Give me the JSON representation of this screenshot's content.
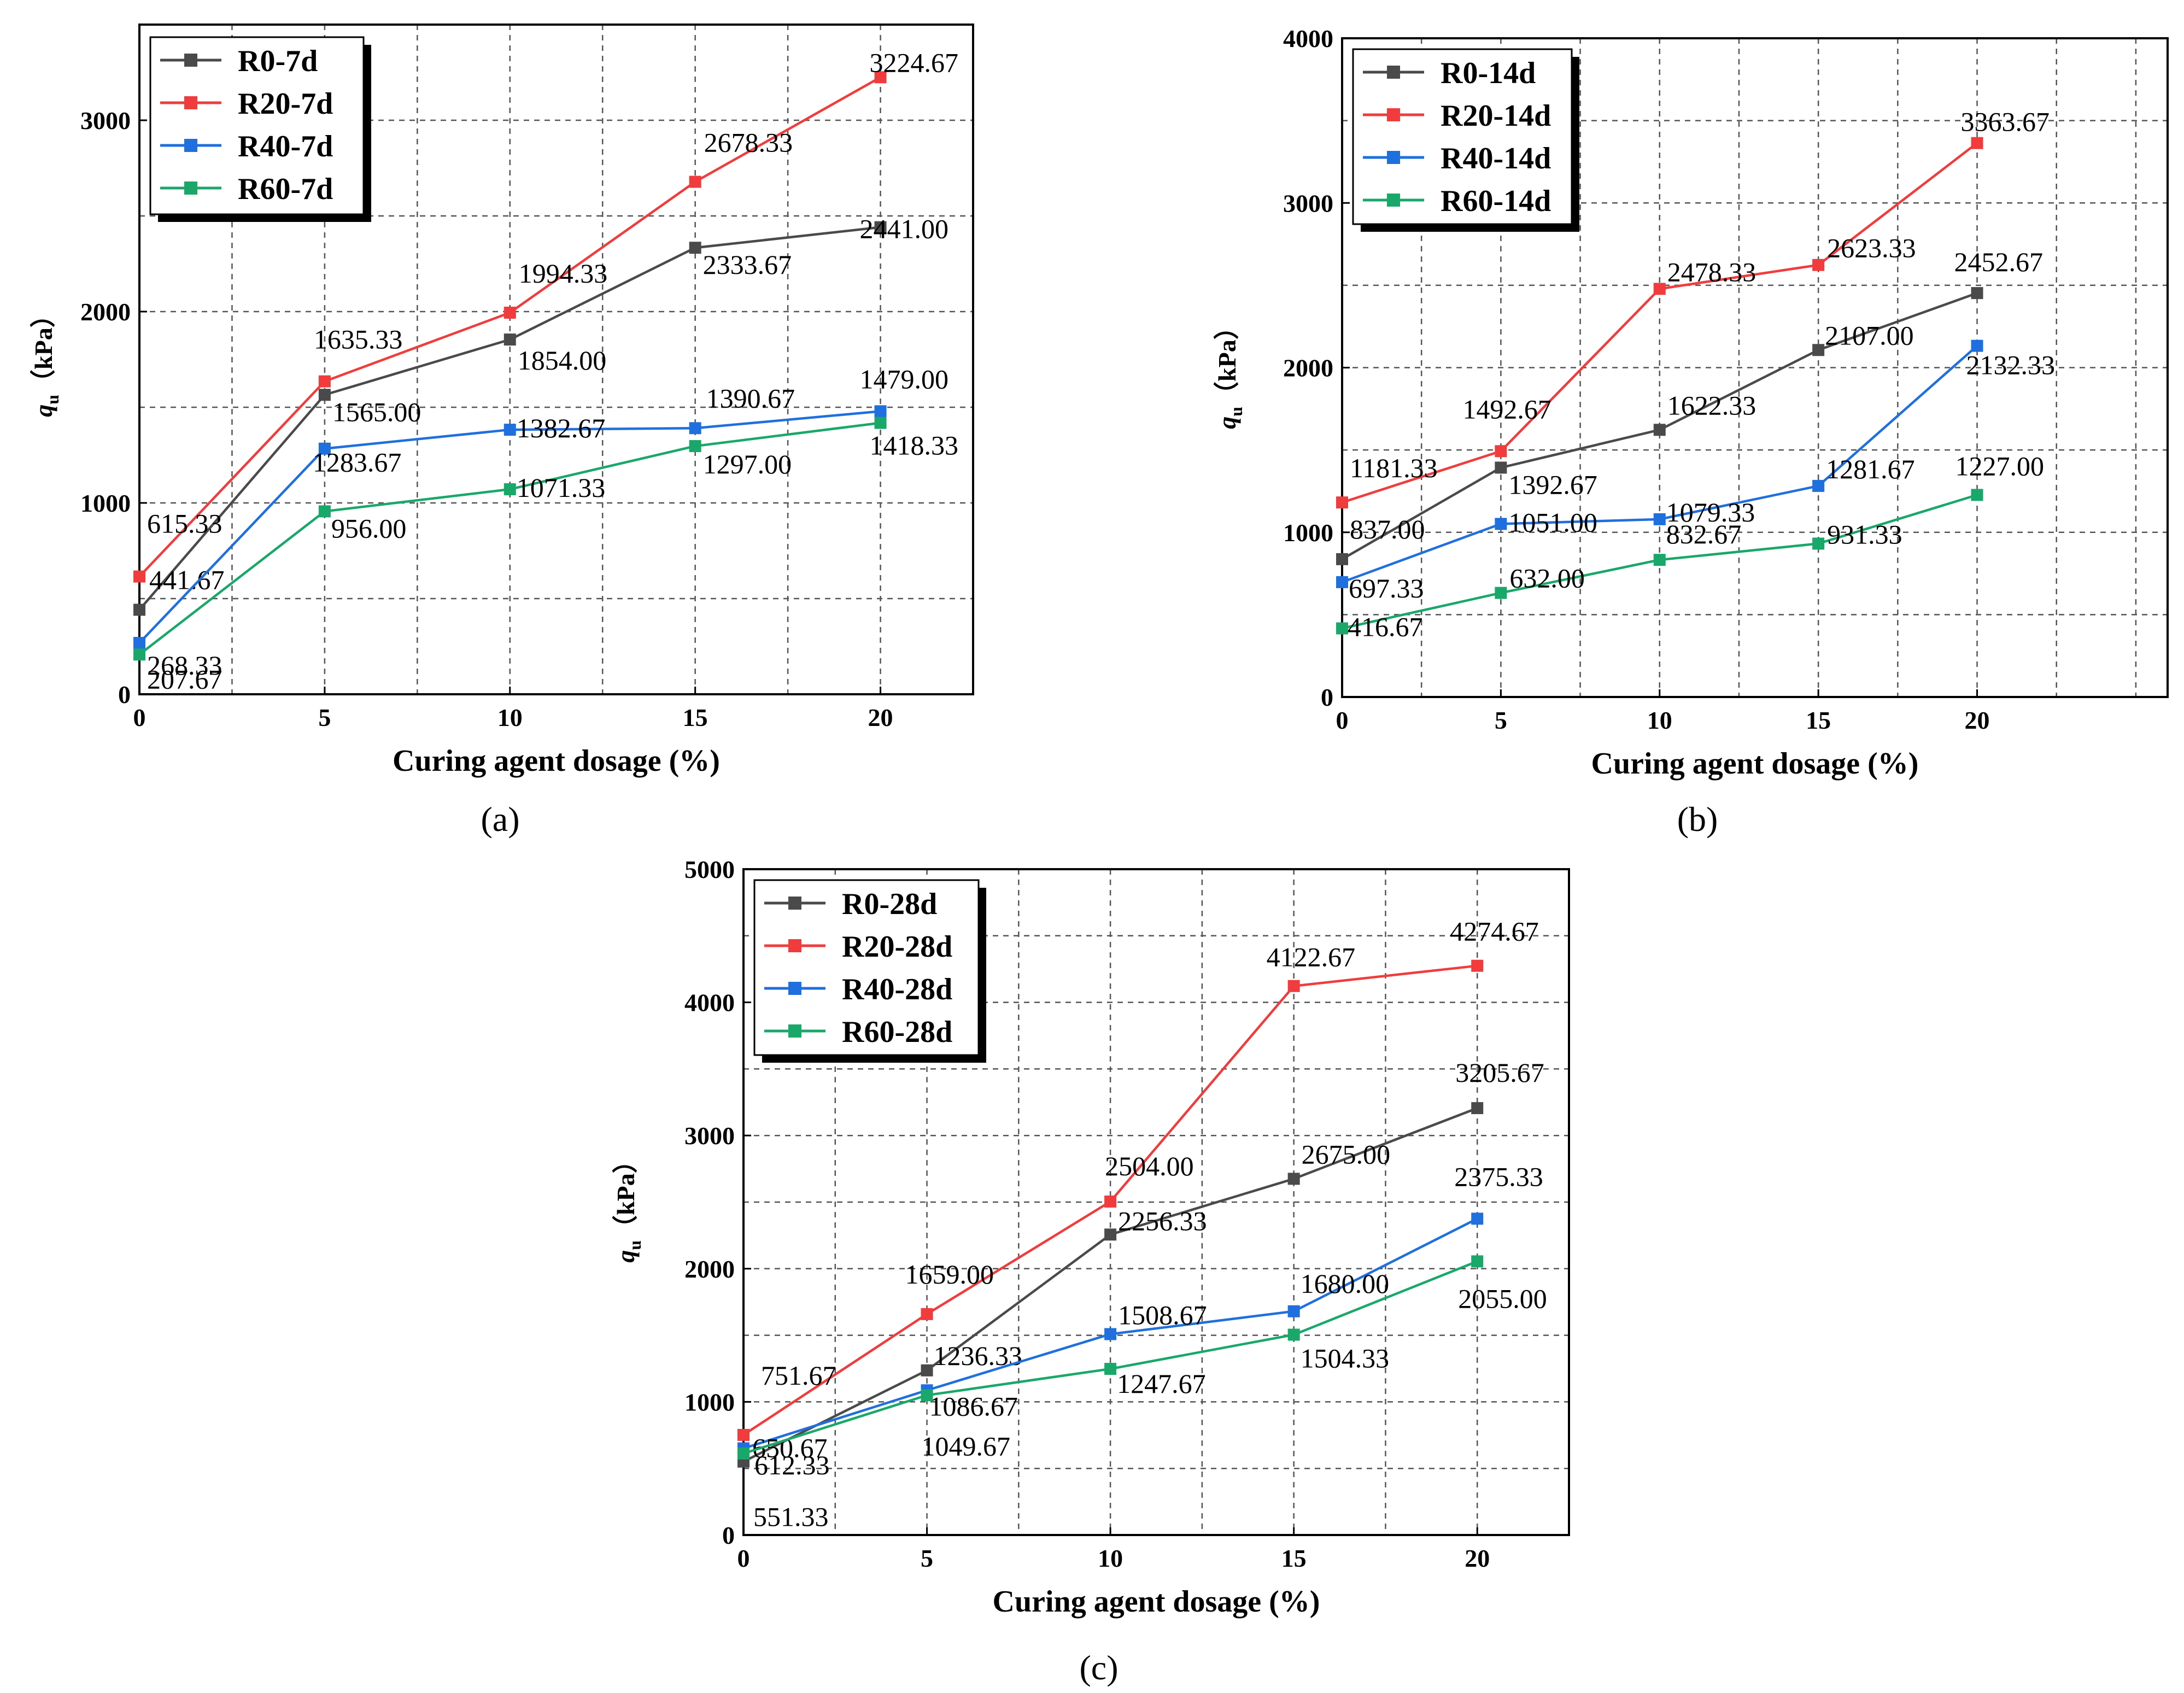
{
  "chart_data": [
    {
      "type": "line",
      "panel_label": "(a)",
      "xlabel": "Curing agent dosage (%)",
      "ylabel_q": "q",
      "ylabel_sub": "u",
      "ylabel_unit": "（kPa）",
      "xlim": [
        0,
        22.5
      ],
      "ylim": [
        0,
        3500
      ],
      "x_ticks": [
        0,
        5,
        10,
        15,
        20
      ],
      "y_ticks": [
        0,
        1000,
        2000,
        3000
      ],
      "x": [
        0,
        5,
        10,
        15,
        20
      ],
      "legend_position": "top-left",
      "series": [
        {
          "name": "R0-7d",
          "color": "#4a4a4a",
          "values": [
            441.67,
            1565.0,
            1854.0,
            2333.67,
            2441.0
          ],
          "labels": [
            "441.67",
            "1565.00",
            "1854.00",
            "2333.67",
            "2441.00"
          ]
        },
        {
          "name": "R20-7d",
          "color": "#f03c3c",
          "values": [
            615.33,
            1635.33,
            1994.33,
            2678.33,
            3224.67
          ],
          "labels": [
            "615.33",
            "1635.33",
            "1994.33",
            "2678.33",
            "3224.67"
          ]
        },
        {
          "name": "R40-7d",
          "color": "#1f6fde",
          "values": [
            268.33,
            1283.67,
            1382.67,
            1390.67,
            1479.0
          ],
          "labels": [
            "268.33",
            "1283.67",
            "1382.67",
            "1390.67",
            "1479.00"
          ]
        },
        {
          "name": "R60-7d",
          "color": "#19a86a",
          "values": [
            207.67,
            956.0,
            1071.33,
            1297.0,
            1418.33
          ],
          "labels": [
            "207.67",
            "956.00",
            "1071.33",
            "1297.00",
            "1418.33"
          ]
        }
      ]
    },
    {
      "type": "line",
      "panel_label": "(b)",
      "xlabel": "Curing agent dosage (%)",
      "ylabel_q": "q",
      "ylabel_sub": "u",
      "ylabel_unit": "（kPa）",
      "xlim": [
        0,
        26
      ],
      "ylim": [
        0,
        4000
      ],
      "x_ticks": [
        0,
        5,
        10,
        15,
        20
      ],
      "y_ticks": [
        0,
        1000,
        2000,
        3000,
        4000
      ],
      "x": [
        0,
        5,
        10,
        15,
        20
      ],
      "legend_position": "top-left",
      "series": [
        {
          "name": "R0-14d",
          "color": "#4a4a4a",
          "values": [
            837.0,
            1392.67,
            1622.33,
            2107.0,
            2452.67
          ],
          "labels": [
            "837.00",
            "1392.67",
            "1622.33",
            "2107.00",
            "2452.67"
          ]
        },
        {
          "name": "R20-14d",
          "color": "#f03c3c",
          "values": [
            1181.33,
            1492.67,
            2478.33,
            2623.33,
            3363.67
          ],
          "labels": [
            "1181.33",
            "1492.67",
            "2478.33",
            "2623.33",
            "3363.67"
          ]
        },
        {
          "name": "R40-14d",
          "color": "#1f6fde",
          "values": [
            697.33,
            1051.0,
            1079.33,
            1281.67,
            2132.33
          ],
          "labels": [
            "697.33",
            "1051.00",
            "1079.33",
            "1281.67",
            "2132.33"
          ]
        },
        {
          "name": "R60-14d",
          "color": "#19a86a",
          "values": [
            416.67,
            632.0,
            832.67,
            931.33,
            1227.0
          ],
          "labels": [
            "416.67",
            "632.00",
            "832.67",
            "931.33",
            "1227.00"
          ]
        }
      ]
    },
    {
      "type": "line",
      "panel_label": "(c)",
      "xlabel": "Curing agent dosage (%)",
      "ylabel_q": "q",
      "ylabel_sub": "u",
      "ylabel_unit": "（kPa）",
      "xlim": [
        0,
        22.5
      ],
      "ylim": [
        0,
        5000
      ],
      "x_ticks": [
        0,
        5,
        10,
        15,
        20
      ],
      "y_ticks": [
        0,
        1000,
        2000,
        3000,
        4000,
        5000
      ],
      "x": [
        0,
        5,
        10,
        15,
        20
      ],
      "legend_position": "top-left",
      "series": [
        {
          "name": "R0-28d",
          "color": "#4a4a4a",
          "values": [
            551.33,
            1236.33,
            2256.33,
            2675.0,
            3205.67
          ],
          "labels": [
            "551.33",
            "1236.33",
            "2256.33",
            "2675.00",
            "3205.67"
          ]
        },
        {
          "name": "R20-28d",
          "color": "#f03c3c",
          "values": [
            751.67,
            1659.0,
            2504.0,
            4122.67,
            4274.67
          ],
          "labels": [
            "751.67",
            "1659.00",
            "2504.00",
            "4122.67",
            "4274.67"
          ]
        },
        {
          "name": "R40-28d",
          "color": "#1f6fde",
          "values": [
            650.67,
            1086.67,
            1508.67,
            1680.0,
            2375.33
          ],
          "labels": [
            "650.67",
            "1086.67",
            "1508.67",
            "1680.00",
            "2375.33"
          ]
        },
        {
          "name": "R60-28d",
          "color": "#19a86a",
          "values": [
            612.33,
            1049.67,
            1247.67,
            1504.33,
            2055.0
          ],
          "labels": [
            "612.33",
            "1049.67",
            "1247.67",
            "1504.33",
            "2055.00"
          ]
        }
      ]
    }
  ]
}
